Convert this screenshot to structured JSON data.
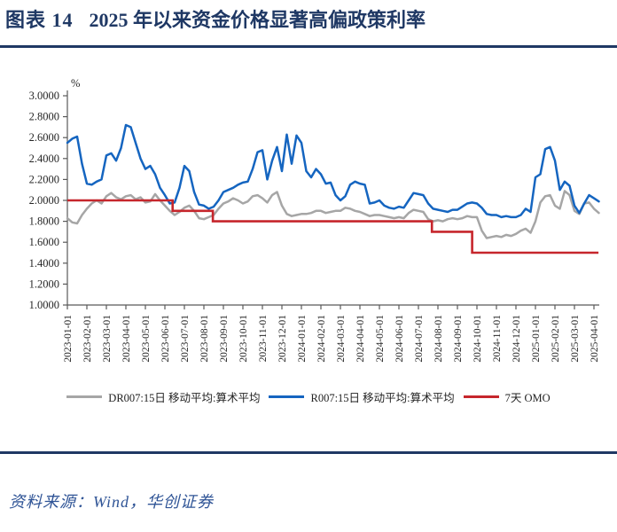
{
  "header": {
    "figure_label": "图表 14",
    "title": "2025 年以来资金价格显著高偏政策利率"
  },
  "footer": {
    "source": "资料来源：Wind，华创证券"
  },
  "colors": {
    "title": "#1F3864",
    "divider": "#1F3864",
    "footer_text": "#2F5496",
    "axis": "#595959",
    "tick_text": "#262626",
    "dr007": "#A6A6A6",
    "r007": "#1565C0",
    "omo": "#C6262C"
  },
  "chart_data": {
    "type": "line",
    "title": "",
    "unit_label": "%",
    "ylabel": "",
    "xlabel": "",
    "ylim": [
      1.0,
      3.0
    ],
    "ytick_step": 0.2,
    "yticks": [
      "3.0000",
      "2.8000",
      "2.6000",
      "2.4000",
      "2.2000",
      "2.0000",
      "1.8000",
      "1.6000",
      "1.4000",
      "1.2000",
      "1.0000"
    ],
    "grid": false,
    "legend_position": "bottom",
    "x_month_ticks": [
      "2023-01-01",
      "2023-02-01",
      "2023-03-01",
      "2023-04-01",
      "2023-05-01",
      "2023-06-01",
      "2023-07-01",
      "2023-08-01",
      "2023-09-01",
      "2023-10-01",
      "2023-11-01",
      "2023-12-01",
      "2024-01-01",
      "2024-02-01",
      "2024-03-01",
      "2024-04-01",
      "2024-05-01",
      "2024-06-01",
      "2024-07-01",
      "2024-08-01",
      "2024-09-01",
      "2024-10-01",
      "2024-11-01",
      "2024-12-01",
      "2025-01-01",
      "2025-02-01",
      "2025-03-01",
      "2025-04-01"
    ],
    "samples_per_month": 4,
    "series": [
      {
        "key": "dr007",
        "name": "DR007:15日 移动平均:算术平均",
        "color_key": "dr007",
        "kind": "sampled",
        "values": [
          1.83,
          1.79,
          1.78,
          1.86,
          1.92,
          1.97,
          2.0,
          1.97,
          2.04,
          2.07,
          2.03,
          2.01,
          2.04,
          2.05,
          2.01,
          2.03,
          1.98,
          1.99,
          2.06,
          2.0,
          1.95,
          1.9,
          1.86,
          1.89,
          1.93,
          1.95,
          1.9,
          1.83,
          1.82,
          1.84,
          1.86,
          1.92,
          1.97,
          1.99,
          2.02,
          2.0,
          1.97,
          1.99,
          2.04,
          2.05,
          2.02,
          1.98,
          2.05,
          2.08,
          1.95,
          1.87,
          1.85,
          1.86,
          1.87,
          1.87,
          1.88,
          1.9,
          1.9,
          1.88,
          1.89,
          1.9,
          1.9,
          1.93,
          1.92,
          1.9,
          1.89,
          1.87,
          1.85,
          1.86,
          1.86,
          1.85,
          1.84,
          1.83,
          1.84,
          1.83,
          1.88,
          1.91,
          1.9,
          1.89,
          1.82,
          1.8,
          1.81,
          1.8,
          1.82,
          1.83,
          1.82,
          1.83,
          1.85,
          1.84,
          1.84,
          1.71,
          1.64,
          1.65,
          1.66,
          1.65,
          1.67,
          1.66,
          1.68,
          1.71,
          1.73,
          1.69,
          1.8,
          1.98,
          2.04,
          2.05,
          1.95,
          1.92,
          2.09,
          2.05,
          1.9,
          1.87,
          1.97,
          1.98,
          1.92,
          1.88
        ]
      },
      {
        "key": "r007",
        "name": "R007:15日 移动平均:算术平均",
        "color_key": "r007",
        "kind": "sampled",
        "values": [
          2.55,
          2.59,
          2.61,
          2.35,
          2.16,
          2.15,
          2.18,
          2.2,
          2.43,
          2.45,
          2.38,
          2.5,
          2.72,
          2.7,
          2.55,
          2.4,
          2.3,
          2.33,
          2.25,
          2.12,
          2.05,
          1.97,
          1.98,
          2.12,
          2.33,
          2.28,
          2.08,
          1.96,
          1.95,
          1.92,
          1.94,
          2.0,
          2.08,
          2.1,
          2.12,
          2.15,
          2.17,
          2.18,
          2.3,
          2.46,
          2.48,
          2.2,
          2.38,
          2.51,
          2.28,
          2.63,
          2.35,
          2.62,
          2.55,
          2.28,
          2.22,
          2.3,
          2.25,
          2.16,
          2.17,
          2.05,
          2.0,
          2.04,
          2.15,
          2.18,
          2.16,
          2.15,
          1.97,
          1.98,
          2.0,
          1.95,
          1.93,
          1.92,
          1.94,
          1.93,
          2.0,
          2.07,
          2.06,
          2.05,
          1.97,
          1.92,
          1.91,
          1.9,
          1.89,
          1.91,
          1.91,
          1.94,
          1.97,
          1.98,
          1.97,
          1.93,
          1.87,
          1.86,
          1.86,
          1.84,
          1.85,
          1.84,
          1.84,
          1.86,
          1.92,
          1.89,
          2.22,
          2.25,
          2.49,
          2.51,
          2.38,
          2.1,
          2.18,
          2.14,
          1.95,
          1.88,
          1.97,
          2.05,
          2.02,
          1.99
        ]
      },
      {
        "key": "omo",
        "name": "7天 OMO",
        "color_key": "omo",
        "kind": "step",
        "steps": [
          [
            "2023-01-01",
            2.0
          ],
          [
            "2023-06-13",
            1.9
          ],
          [
            "2023-08-15",
            1.8
          ],
          [
            "2024-07-22",
            1.7
          ],
          [
            "2024-09-24",
            1.5
          ]
        ],
        "end_date": "2025-04-08"
      }
    ]
  }
}
